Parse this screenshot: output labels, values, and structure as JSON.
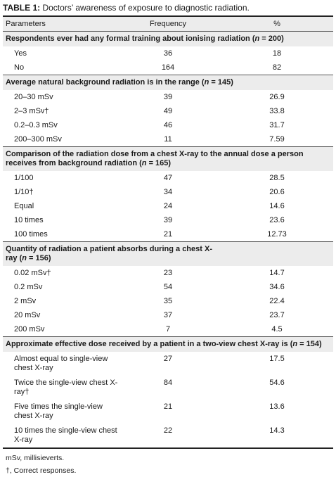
{
  "caption": {
    "label": "TABLE 1:",
    "text": " Doctors’ awareness of exposure to diagnostic radiation."
  },
  "header": {
    "parameters": "Parameters",
    "frequency": "Frequency",
    "percent": "%"
  },
  "sections": [
    {
      "title_pre": "Respondents ever had any formal training about ionising radiation (",
      "n_sym": "n",
      "title_post": " = 200)",
      "rows": [
        {
          "parameter": "Yes",
          "frequency": "36",
          "percent": "18"
        },
        {
          "parameter": "No",
          "frequency": "164",
          "percent": "82"
        }
      ]
    },
    {
      "title_pre": "Average natural background radiation is in the range (",
      "n_sym": "n",
      "title_post": " = 145)",
      "rows": [
        {
          "parameter": "20–30 mSv",
          "frequency": "39",
          "percent": "26.9"
        },
        {
          "parameter": "2–3 mSv†",
          "frequency": "49",
          "percent": "33.8"
        },
        {
          "parameter": "0.2–0.3 mSv",
          "frequency": "46",
          "percent": "31.7"
        },
        {
          "parameter": "200–300 mSv",
          "frequency": "11",
          "percent": "7.59"
        }
      ]
    },
    {
      "title_pre": "Comparison of the radiation dose from a chest X-ray to the annual dose a person receives from background radiation (",
      "n_sym": "n",
      "title_post": " = 165)",
      "rows": [
        {
          "parameter": "1/100",
          "frequency": "47",
          "percent": "28.5"
        },
        {
          "parameter": "1/10†",
          "frequency": "34",
          "percent": "20.6"
        },
        {
          "parameter": "Equal",
          "frequency": "24",
          "percent": "14.6"
        },
        {
          "parameter": "10 times",
          "frequency": "39",
          "percent": "23.6"
        },
        {
          "parameter": "100 times",
          "frequency": "21",
          "percent": "12.73"
        }
      ]
    },
    {
      "title_pre": "Quantity of radiation a patient absorbs during a chest X-ray (",
      "n_sym": "n",
      "title_post": " = 156)",
      "rows": [
        {
          "parameter": "0.02 mSv†",
          "frequency": "23",
          "percent": "14.7"
        },
        {
          "parameter": "0.2 mSv",
          "frequency": "54",
          "percent": "34.6"
        },
        {
          "parameter": "2 mSv",
          "frequency": "35",
          "percent": "22.4"
        },
        {
          "parameter": "20 mSv",
          "frequency": "37",
          "percent": "23.7"
        },
        {
          "parameter": "200 mSv",
          "frequency": "7",
          "percent": "4.5"
        }
      ]
    },
    {
      "title_pre": "Approximate effective dose received by a patient in a two-view chest X-ray is (",
      "n_sym": "n",
      "title_post": " = 154)",
      "rows": [
        {
          "parameter": "Almost equal to single-view chest X-ray",
          "frequency": "27",
          "percent": "17.5"
        },
        {
          "parameter": "Twice the single-view chest X-ray†",
          "frequency": "84",
          "percent": "54.6"
        },
        {
          "parameter": "Five times the single-view chest X-ray",
          "frequency": "21",
          "percent": "13.6"
        },
        {
          "parameter": "10 times the single-view chest X-ray",
          "frequency": "22",
          "percent": "14.3"
        }
      ]
    }
  ],
  "footnotes": [
    "mSv, millisieverts.",
    "†, Correct responses."
  ]
}
